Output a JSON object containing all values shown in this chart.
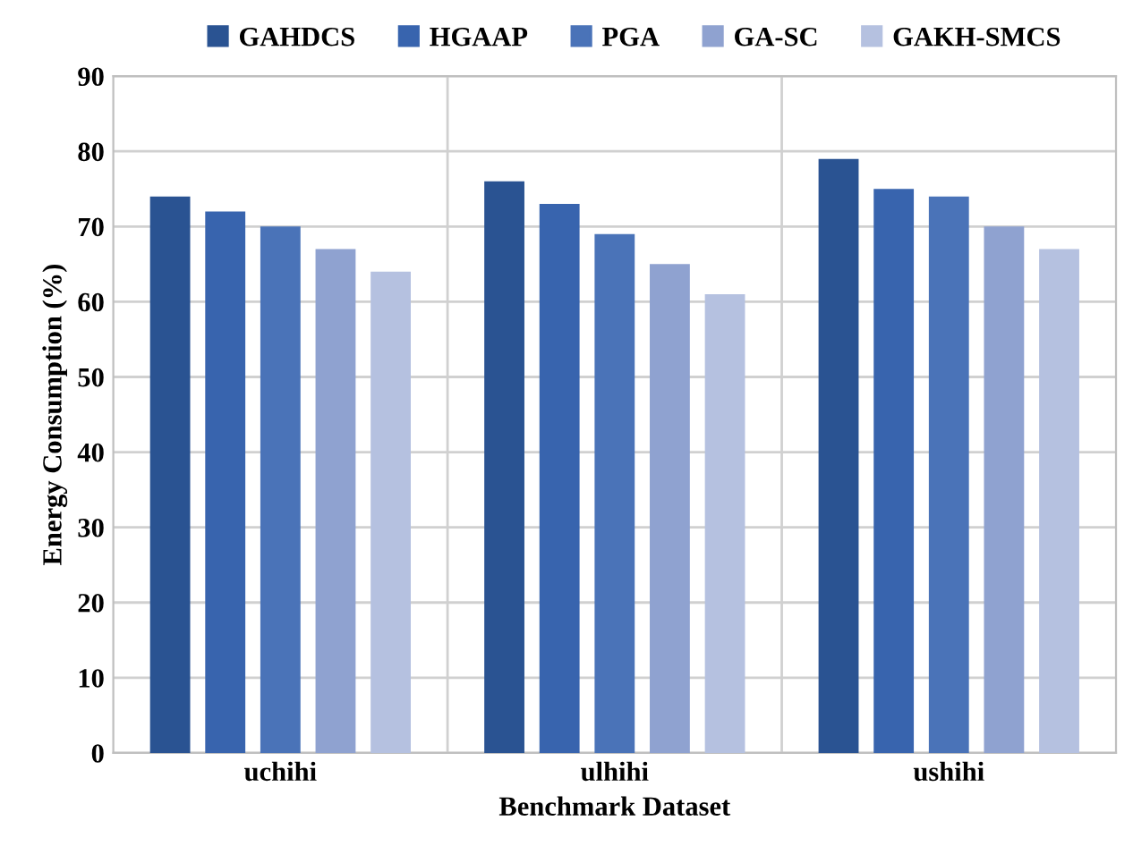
{
  "chart_data": {
    "type": "bar",
    "xlabel": "Benchmark Dataset",
    "ylabel": "Energy Consumption (%)",
    "categories": [
      "uchihi",
      "ulhihi",
      "ushihi"
    ],
    "series": [
      {
        "name": "GAHDCS",
        "color": "#2a5392",
        "values": [
          74,
          76,
          79
        ]
      },
      {
        "name": "HGAAP",
        "color": "#3864ae",
        "values": [
          72,
          73,
          75
        ]
      },
      {
        "name": "PGA",
        "color": "#4a73b8",
        "values": [
          70,
          69,
          74
        ]
      },
      {
        "name": "GA-SC",
        "color": "#8fa2d0",
        "values": [
          67,
          65,
          70
        ]
      },
      {
        "name": "GAKH-SMCS",
        "color": "#b5c1e0",
        "values": [
          64,
          61,
          67
        ]
      }
    ],
    "ylim": [
      0,
      90
    ],
    "yticks": [
      0,
      10,
      20,
      30,
      40,
      50,
      60,
      70,
      80,
      90
    ],
    "grid": true,
    "legend": "top"
  }
}
